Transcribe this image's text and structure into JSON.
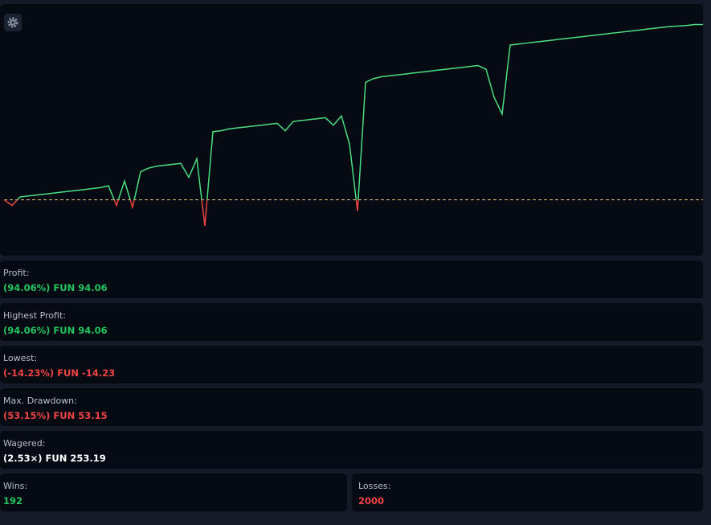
{
  "chart_data": {
    "type": "line",
    "color": "#4ade80",
    "negative_color": "#ef4444",
    "values": [
      0,
      -3,
      1.5,
      2,
      2.5,
      3,
      3.5,
      4,
      4.5,
      5,
      5.5,
      6,
      6.5,
      7.5,
      -3,
      10,
      -4,
      15,
      17,
      18,
      18.5,
      19,
      19.5,
      12,
      22,
      -14,
      36.5,
      37,
      38,
      38.5,
      39,
      39.5,
      40,
      40.5,
      41,
      37,
      42,
      42.5,
      43,
      43.5,
      44,
      40,
      45,
      30,
      -6,
      63,
      65,
      66,
      66.5,
      67,
      67.5,
      68,
      68.5,
      69,
      69.5,
      70,
      70.5,
      71,
      71.5,
      72,
      70,
      55,
      46,
      83,
      83.5,
      84,
      84.5,
      85,
      85.5,
      86,
      86.5,
      87,
      87.5,
      88,
      88.5,
      89,
      89.5,
      90,
      90.5,
      91,
      91.5,
      92,
      92.5,
      93,
      93.2,
      93.5,
      94,
      94
    ],
    "ylim": [
      -30,
      105
    ]
  },
  "stats": [
    {
      "label": "Profit:",
      "value": "(94.06%) FUN 94.06",
      "tone": "positive"
    },
    {
      "label": "Highest Profit:",
      "value": "(94.06%) FUN 94.06",
      "tone": "positive"
    },
    {
      "label": "Lowest:",
      "value": "(-14.23%) FUN -14.23",
      "tone": "negative"
    },
    {
      "label": "Max. Drawdown:",
      "value": "(53.15%) FUN 53.15",
      "tone": "negative"
    },
    {
      "label": "Wagered:",
      "value": "(2.53×) FUN 253.19",
      "tone": "neutral"
    }
  ],
  "wins": {
    "label": "Wins:",
    "value": "192"
  },
  "losses": {
    "label": "Losses:",
    "value": "2000"
  }
}
